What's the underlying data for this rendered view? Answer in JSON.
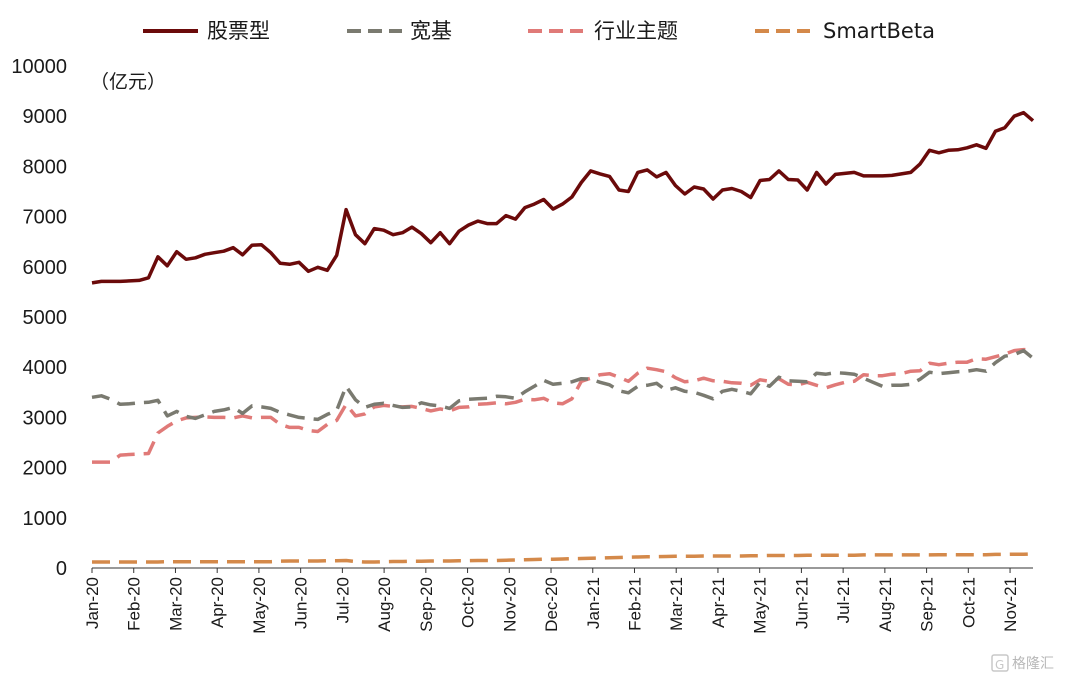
{
  "chart_data": {
    "type": "line",
    "unit_label": "（亿元）",
    "ylim": [
      0,
      10000
    ],
    "yticks": [
      "0",
      "1000",
      "2000",
      "3000",
      "4000",
      "5000",
      "6000",
      "7000",
      "8000",
      "9000",
      "10000"
    ],
    "x_labels": [
      "Jan-20",
      "Feb-20",
      "Mar-20",
      "Apr-20",
      "May-20",
      "Jun-20",
      "Jul-20",
      "Aug-20",
      "Sep-20",
      "Oct-20",
      "Nov-20",
      "Dec-20",
      "Jan-21",
      "Feb-21",
      "Mar-21",
      "Apr-21",
      "May-21",
      "Jun-21",
      "Jul-21",
      "Aug-21",
      "Sep-21",
      "Oct-21",
      "Nov-21"
    ],
    "legend_position": "top",
    "series": [
      {
        "name": "股票型",
        "color": "#6b0a0a",
        "dash": "solid",
        "values": [
          5680,
          5710,
          5710,
          5710,
          5720,
          5730,
          5780,
          6200,
          6020,
          6300,
          6150,
          6180,
          6250,
          6280,
          6310,
          6380,
          6240,
          6430,
          6440,
          6280,
          6070,
          6050,
          6090,
          5910,
          5990,
          5930,
          6230,
          7140,
          6640,
          6460,
          6760,
          6730,
          6640,
          6680,
          6790,
          6660,
          6480,
          6680,
          6460,
          6710,
          6830,
          6910,
          6860,
          6860,
          7020,
          6950,
          7180,
          7250,
          7340,
          7150,
          7250,
          7390,
          7680,
          7910,
          7850,
          7800,
          7530,
          7500,
          7880,
          7930,
          7790,
          7880,
          7620,
          7450,
          7590,
          7550,
          7350,
          7530,
          7560,
          7500,
          7380,
          7720,
          7740,
          7910,
          7740,
          7730,
          7530,
          7880,
          7650,
          7840,
          7860,
          7880,
          7810,
          7810,
          7810,
          7820,
          7850,
          7880,
          8050,
          8320,
          8270,
          8320,
          8330,
          8370,
          8430,
          8360,
          8700,
          8770,
          9000,
          9070,
          8910
        ]
      },
      {
        "name": "宽基",
        "color": "#7a7a70",
        "dash": "long",
        "values": [
          3400,
          3430,
          3360,
          3260,
          3270,
          3290,
          3300,
          3340,
          3030,
          3120,
          3020,
          2980,
          3050,
          3120,
          3150,
          3200,
          3080,
          3230,
          3210,
          3180,
          3100,
          3050,
          3000,
          2980,
          2960,
          3060,
          3140,
          3620,
          3350,
          3200,
          3260,
          3280,
          3240,
          3200,
          3210,
          3290,
          3250,
          3230,
          3180,
          3330,
          3360,
          3370,
          3380,
          3420,
          3410,
          3380,
          3510,
          3620,
          3740,
          3660,
          3680,
          3710,
          3770,
          3760,
          3700,
          3650,
          3530,
          3490,
          3620,
          3640,
          3680,
          3540,
          3590,
          3520,
          3500,
          3440,
          3370,
          3520,
          3560,
          3520,
          3470,
          3700,
          3620,
          3800,
          3730,
          3720,
          3710,
          3880,
          3860,
          3890,
          3880,
          3860,
          3780,
          3700,
          3620,
          3640,
          3640,
          3660,
          3760,
          3900,
          3870,
          3890,
          3910,
          3920,
          3950,
          3920,
          4090,
          4220,
          4250,
          4330,
          4180
        ]
      },
      {
        "name": "行业主题",
        "color": "#e07a78",
        "dash": "long",
        "values": [
          2110,
          2110,
          2110,
          2250,
          2260,
          2270,
          2280,
          2690,
          2820,
          2930,
          2990,
          3000,
          3010,
          3000,
          3000,
          2990,
          3030,
          2990,
          3000,
          3000,
          2860,
          2800,
          2800,
          2740,
          2720,
          2860,
          2940,
          3260,
          3030,
          3070,
          3210,
          3240,
          3220,
          3210,
          3220,
          3180,
          3130,
          3170,
          3130,
          3200,
          3210,
          3260,
          3270,
          3290,
          3270,
          3300,
          3360,
          3350,
          3380,
          3290,
          3270,
          3370,
          3720,
          3780,
          3850,
          3870,
          3800,
          3720,
          3880,
          3980,
          3950,
          3910,
          3790,
          3710,
          3730,
          3780,
          3730,
          3720,
          3690,
          3680,
          3640,
          3750,
          3720,
          3770,
          3660,
          3650,
          3700,
          3640,
          3590,
          3650,
          3700,
          3720,
          3850,
          3830,
          3830,
          3860,
          3870,
          3920,
          3930,
          4080,
          4050,
          4080,
          4100,
          4100,
          4170,
          4160,
          4210,
          4260,
          4330,
          4350,
          4350
        ]
      },
      {
        "name": "SmartBeta",
        "color": "#d4894a",
        "dash": "long",
        "values": [
          120,
          120,
          120,
          120,
          120,
          120,
          120,
          120,
          125,
          125,
          125,
          125,
          125,
          125,
          125,
          125,
          125,
          125,
          125,
          125,
          135,
          140,
          140,
          140,
          140,
          145,
          145,
          150,
          130,
          120,
          120,
          125,
          130,
          130,
          135,
          135,
          140,
          140,
          140,
          145,
          145,
          150,
          150,
          150,
          155,
          160,
          165,
          170,
          175,
          175,
          180,
          185,
          190,
          195,
          200,
          205,
          210,
          215,
          220,
          225,
          225,
          230,
          235,
          235,
          235,
          240,
          240,
          240,
          240,
          240,
          245,
          245,
          250,
          250,
          250,
          250,
          255,
          255,
          255,
          255,
          255,
          255,
          260,
          260,
          260,
          260,
          260,
          260,
          260,
          260,
          265,
          265,
          265,
          265,
          265,
          265,
          270,
          270,
          275,
          275,
          280
        ]
      }
    ]
  },
  "watermark": "格隆汇"
}
